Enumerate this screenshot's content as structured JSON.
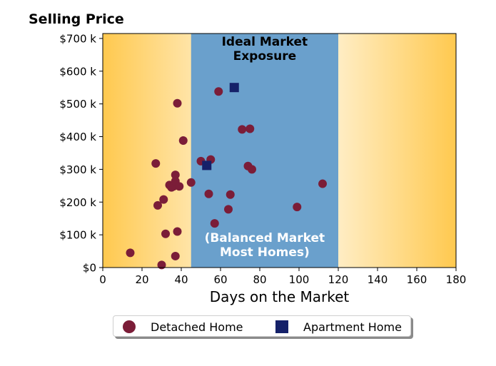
{
  "chart_data": {
    "type": "scatter",
    "title": "",
    "xlabel": "Days on the Market",
    "ylabel": "Selling Price",
    "xlim": [
      0,
      180
    ],
    "ylim": [
      0,
      715000
    ],
    "x_ticks": [
      0,
      20,
      40,
      60,
      80,
      100,
      120,
      140,
      160,
      180
    ],
    "x_tick_labels": [
      "0",
      "20",
      "40",
      "60",
      "80",
      "100",
      "120",
      "140",
      "160",
      "180"
    ],
    "y_ticks": [
      0,
      100000,
      200000,
      300000,
      400000,
      500000,
      600000,
      700000
    ],
    "y_tick_labels": [
      "$0",
      "$100 k",
      "$200 k",
      "$300 k",
      "$400 k",
      "$500 k",
      "$600 k",
      "$700 k"
    ],
    "ideal_band": {
      "x_range": [
        45,
        120
      ],
      "label": "Ideal Market\nExposure",
      "sublabel": "(Balanced Market\nMost Homes)",
      "color": "#6aa0cc"
    },
    "background_gradient": {
      "edge_color": "#ffc94f",
      "center_color": "#ffffff"
    },
    "grid": false,
    "legend_position": "bottom",
    "series": [
      {
        "name": "Detached Home",
        "marker": "circle",
        "color": "#7b1d38",
        "points": [
          [
            14,
            45000
          ],
          [
            27,
            318000
          ],
          [
            28,
            190000
          ],
          [
            30,
            8000
          ],
          [
            31,
            208000
          ],
          [
            32,
            103000
          ],
          [
            34,
            252000
          ],
          [
            35,
            245000
          ],
          [
            36,
            248000
          ],
          [
            37,
            283000
          ],
          [
            37,
            264000
          ],
          [
            37,
            35000
          ],
          [
            38,
            110000
          ],
          [
            38,
            502000
          ],
          [
            39,
            248000
          ],
          [
            41,
            388000
          ],
          [
            45,
            260000
          ],
          [
            50,
            325000
          ],
          [
            54,
            225000
          ],
          [
            55,
            330000
          ],
          [
            57,
            135000
          ],
          [
            59,
            538000
          ],
          [
            64,
            178000
          ],
          [
            65,
            223000
          ],
          [
            71,
            422000
          ],
          [
            74,
            310000
          ],
          [
            75,
            424000
          ],
          [
            76,
            300000
          ],
          [
            99,
            185000
          ],
          [
            112,
            256000
          ]
        ]
      },
      {
        "name": "Apartment Home",
        "marker": "square",
        "color": "#152169",
        "points": [
          [
            53,
            312000
          ],
          [
            67,
            550000
          ]
        ]
      }
    ]
  }
}
